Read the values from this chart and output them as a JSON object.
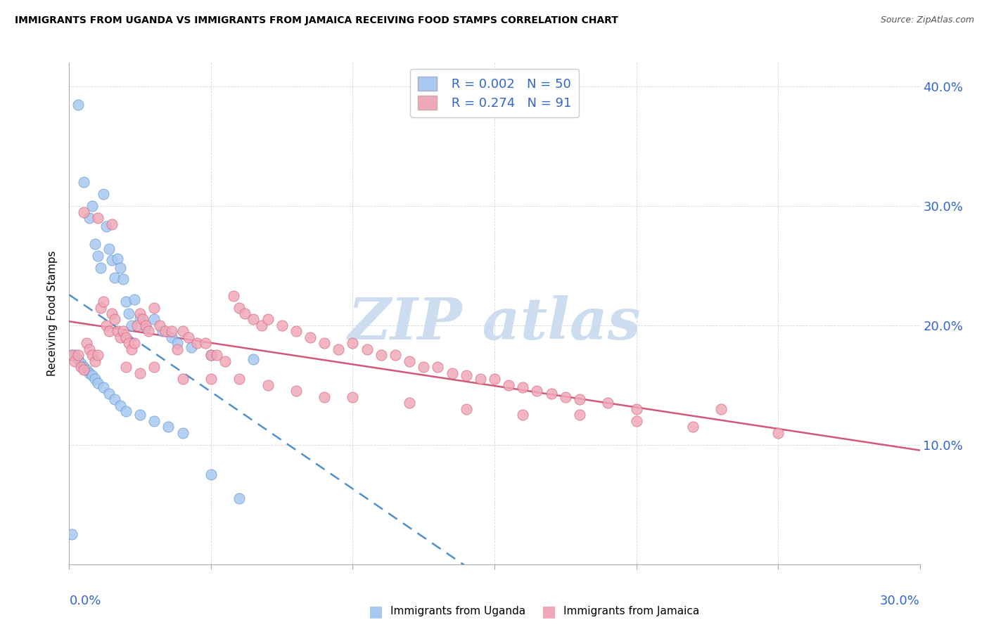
{
  "title": "IMMIGRANTS FROM UGANDA VS IMMIGRANTS FROM JAMAICA RECEIVING FOOD STAMPS CORRELATION CHART",
  "source": "Source: ZipAtlas.com",
  "ylabel": "Receiving Food Stamps",
  "xlim": [
    0.0,
    0.3
  ],
  "ylim": [
    0.0,
    0.42
  ],
  "uganda_color": "#a8c8f0",
  "jamaica_color": "#f0a8b8",
  "uganda_line_color": "#5090c8",
  "jamaica_line_color": "#d05878",
  "tick_color": "#3366cc",
  "watermark_color": "#ccddf0",
  "uganda_R": 0.002,
  "uganda_N": 50,
  "jamaica_R": 0.274,
  "jamaica_N": 91,
  "uganda_x": [
    0.003,
    0.005,
    0.007,
    0.008,
    0.009,
    0.01,
    0.011,
    0.012,
    0.013,
    0.014,
    0.015,
    0.016,
    0.017,
    0.018,
    0.019,
    0.02,
    0.021,
    0.022,
    0.023,
    0.025,
    0.027,
    0.03,
    0.033,
    0.036,
    0.038,
    0.043,
    0.05,
    0.065,
    0.001,
    0.002,
    0.003,
    0.004,
    0.005,
    0.006,
    0.007,
    0.008,
    0.009,
    0.01,
    0.012,
    0.014,
    0.016,
    0.018,
    0.02,
    0.025,
    0.03,
    0.035,
    0.04,
    0.05,
    0.06,
    0.001
  ],
  "uganda_y": [
    0.385,
    0.32,
    0.29,
    0.3,
    0.268,
    0.258,
    0.248,
    0.31,
    0.283,
    0.264,
    0.255,
    0.24,
    0.256,
    0.248,
    0.239,
    0.22,
    0.21,
    0.2,
    0.222,
    0.206,
    0.198,
    0.205,
    0.195,
    0.19,
    0.185,
    0.182,
    0.175,
    0.172,
    0.175,
    0.175,
    0.172,
    0.168,
    0.165,
    0.163,
    0.16,
    0.158,
    0.155,
    0.152,
    0.148,
    0.143,
    0.138,
    0.133,
    0.128,
    0.125,
    0.12,
    0.115,
    0.11,
    0.075,
    0.055,
    0.025
  ],
  "jamaica_x": [
    0.001,
    0.002,
    0.003,
    0.004,
    0.005,
    0.006,
    0.007,
    0.008,
    0.009,
    0.01,
    0.011,
    0.012,
    0.013,
    0.014,
    0.015,
    0.016,
    0.017,
    0.018,
    0.019,
    0.02,
    0.021,
    0.022,
    0.023,
    0.024,
    0.025,
    0.026,
    0.027,
    0.028,
    0.03,
    0.032,
    0.034,
    0.036,
    0.038,
    0.04,
    0.042,
    0.045,
    0.048,
    0.05,
    0.052,
    0.055,
    0.058,
    0.06,
    0.062,
    0.065,
    0.068,
    0.07,
    0.075,
    0.08,
    0.085,
    0.09,
    0.095,
    0.1,
    0.105,
    0.11,
    0.115,
    0.12,
    0.125,
    0.13,
    0.135,
    0.14,
    0.145,
    0.15,
    0.155,
    0.16,
    0.165,
    0.17,
    0.175,
    0.18,
    0.19,
    0.2,
    0.005,
    0.01,
    0.015,
    0.02,
    0.025,
    0.03,
    0.04,
    0.05,
    0.06,
    0.07,
    0.08,
    0.09,
    0.1,
    0.12,
    0.14,
    0.16,
    0.18,
    0.2,
    0.22,
    0.25,
    0.23
  ],
  "jamaica_y": [
    0.175,
    0.17,
    0.175,
    0.165,
    0.163,
    0.185,
    0.18,
    0.175,
    0.17,
    0.175,
    0.215,
    0.22,
    0.2,
    0.195,
    0.21,
    0.205,
    0.195,
    0.19,
    0.195,
    0.19,
    0.185,
    0.18,
    0.185,
    0.2,
    0.21,
    0.205,
    0.2,
    0.195,
    0.215,
    0.2,
    0.195,
    0.195,
    0.18,
    0.195,
    0.19,
    0.185,
    0.185,
    0.175,
    0.175,
    0.17,
    0.225,
    0.215,
    0.21,
    0.205,
    0.2,
    0.205,
    0.2,
    0.195,
    0.19,
    0.185,
    0.18,
    0.185,
    0.18,
    0.175,
    0.175,
    0.17,
    0.165,
    0.165,
    0.16,
    0.158,
    0.155,
    0.155,
    0.15,
    0.148,
    0.145,
    0.143,
    0.14,
    0.138,
    0.135,
    0.13,
    0.295,
    0.29,
    0.285,
    0.165,
    0.16,
    0.165,
    0.155,
    0.155,
    0.155,
    0.15,
    0.145,
    0.14,
    0.14,
    0.135,
    0.13,
    0.125,
    0.125,
    0.12,
    0.115,
    0.11,
    0.13
  ],
  "grid_color": "#cccccc",
  "legend_box_color": "#e8e8e8"
}
